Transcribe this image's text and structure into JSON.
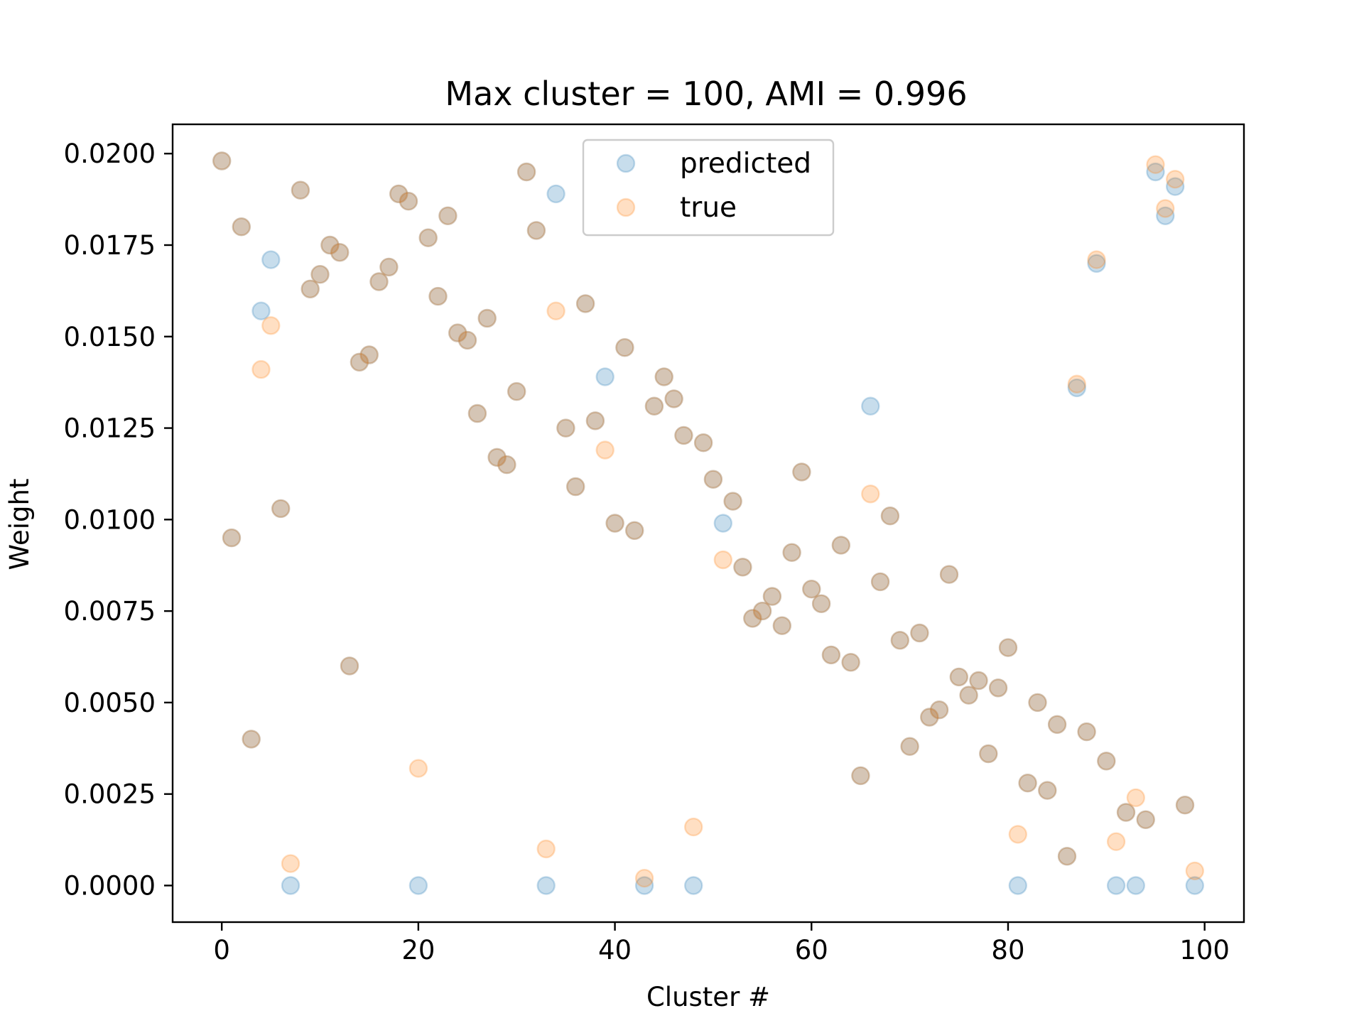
{
  "chart_data": {
    "type": "scatter",
    "title": "Max cluster = 100, AMI = 0.996",
    "xlabel": "Cluster #",
    "ylabel": "Weight",
    "xlim": [
      -5,
      104
    ],
    "ylim": [
      -0.001,
      0.0208
    ],
    "xticks": [
      0,
      20,
      40,
      60,
      80,
      100
    ],
    "yticks": [
      0.0,
      0.0025,
      0.005,
      0.0075,
      0.01,
      0.0125,
      0.015,
      0.0175,
      0.02
    ],
    "ytick_labels": [
      "0.0000",
      "0.0025",
      "0.0050",
      "0.0075",
      "0.0100",
      "0.0125",
      "0.0150",
      "0.0175",
      "0.0200"
    ],
    "grid": false,
    "legend_position": "upper center",
    "colors": {
      "predicted": "#1f77b4",
      "true": "#ff7f0e"
    },
    "marker_alpha": 0.25,
    "x": [
      0,
      1,
      2,
      3,
      4,
      5,
      6,
      7,
      8,
      9,
      10,
      11,
      12,
      13,
      14,
      15,
      16,
      17,
      18,
      19,
      20,
      21,
      22,
      23,
      24,
      25,
      26,
      27,
      28,
      29,
      30,
      31,
      32,
      33,
      34,
      35,
      36,
      37,
      38,
      39,
      40,
      41,
      42,
      43,
      44,
      45,
      46,
      47,
      48,
      49,
      50,
      51,
      52,
      53,
      54,
      55,
      56,
      57,
      58,
      59,
      60,
      61,
      62,
      63,
      64,
      65,
      66,
      67,
      68,
      69,
      70,
      71,
      72,
      73,
      74,
      75,
      76,
      77,
      78,
      79,
      80,
      81,
      82,
      83,
      84,
      85,
      86,
      87,
      88,
      89,
      90,
      91,
      92,
      93,
      94,
      95,
      96,
      97,
      98,
      99
    ],
    "series": [
      {
        "name": "predicted",
        "values": [
          0.0198,
          0.0095,
          0.018,
          0.004,
          0.0157,
          0.0171,
          0.0103,
          0.0,
          0.019,
          0.0163,
          0.0167,
          0.0175,
          0.0173,
          0.006,
          0.0143,
          0.0145,
          0.0165,
          0.0169,
          0.0189,
          0.0187,
          0.0,
          0.0177,
          0.0161,
          0.0183,
          0.0151,
          0.0149,
          0.0129,
          0.0155,
          0.0117,
          0.0115,
          0.0135,
          0.0195,
          0.0179,
          0.0,
          0.0189,
          0.0125,
          0.0109,
          0.0159,
          0.0127,
          0.0139,
          0.0099,
          0.0147,
          0.0097,
          0.0,
          0.0131,
          0.0139,
          0.0133,
          0.0123,
          0.0,
          0.0121,
          0.0111,
          0.0099,
          0.0105,
          0.0087,
          0.0073,
          0.0075,
          0.0079,
          0.0071,
          0.0091,
          0.0113,
          0.0081,
          0.0077,
          0.0063,
          0.0093,
          0.0061,
          0.003,
          0.0131,
          0.0083,
          0.0101,
          0.0067,
          0.0038,
          0.0069,
          0.0046,
          0.0048,
          0.0085,
          0.0057,
          0.0052,
          0.0056,
          0.0036,
          0.0054,
          0.0065,
          0.0,
          0.0028,
          0.005,
          0.0026,
          0.0044,
          0.0008,
          0.0136,
          0.0042,
          0.017,
          0.0034,
          0.0,
          0.002,
          0.0,
          0.0018,
          0.0195,
          0.0183,
          0.0191,
          0.0022,
          0.0
        ]
      },
      {
        "name": "true",
        "values": [
          0.0198,
          0.0095,
          0.018,
          0.004,
          0.0141,
          0.0153,
          0.0103,
          0.0006,
          0.019,
          0.0163,
          0.0167,
          0.0175,
          0.0173,
          0.006,
          0.0143,
          0.0145,
          0.0165,
          0.0169,
          0.0189,
          0.0187,
          0.0032,
          0.0177,
          0.0161,
          0.0183,
          0.0151,
          0.0149,
          0.0129,
          0.0155,
          0.0117,
          0.0115,
          0.0135,
          0.0195,
          0.0179,
          0.001,
          0.0157,
          0.0125,
          0.0109,
          0.0159,
          0.0127,
          0.0119,
          0.0099,
          0.0147,
          0.0097,
          0.0002,
          0.0131,
          0.0139,
          0.0133,
          0.0123,
          0.0016,
          0.0121,
          0.0111,
          0.0089,
          0.0105,
          0.0087,
          0.0073,
          0.0075,
          0.0079,
          0.0071,
          0.0091,
          0.0113,
          0.0081,
          0.0077,
          0.0063,
          0.0093,
          0.0061,
          0.003,
          0.0107,
          0.0083,
          0.0101,
          0.0067,
          0.0038,
          0.0069,
          0.0046,
          0.0048,
          0.0085,
          0.0057,
          0.0052,
          0.0056,
          0.0036,
          0.0054,
          0.0065,
          0.0014,
          0.0028,
          0.005,
          0.0026,
          0.0044,
          0.0008,
          0.0137,
          0.0042,
          0.0171,
          0.0034,
          0.0012,
          0.002,
          0.0024,
          0.0018,
          0.0197,
          0.0185,
          0.0193,
          0.0022,
          0.0004
        ]
      }
    ]
  }
}
